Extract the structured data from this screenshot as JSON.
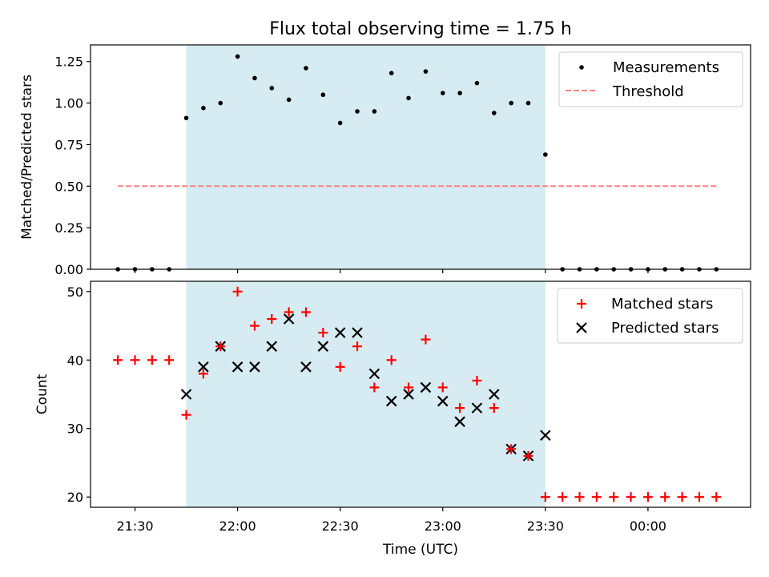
{
  "chart_data": [
    {
      "type": "scatter",
      "title": "Flux total observing time = 1.75 h",
      "xlabel": "",
      "ylabel": "Matched/Predicted stars",
      "ylim": [
        0,
        1.35
      ],
      "yticks": [
        "0.00",
        "0.25",
        "0.50",
        "0.75",
        "1.00",
        "1.25"
      ],
      "ytick_values": [
        0,
        0.25,
        0.5,
        0.75,
        1.0,
        1.25
      ],
      "xlim": [
        "21:17",
        "00:30"
      ],
      "highlight_span": [
        "21:45",
        "23:30"
      ],
      "highlight_color": "#add8e6",
      "legend_position": "top-right",
      "series": [
        {
          "name": "Measurements",
          "marker": "dot",
          "color": "#000000",
          "x": [
            "21:25",
            "21:30",
            "21:35",
            "21:40",
            "21:45",
            "21:50",
            "21:55",
            "22:00",
            "22:05",
            "22:10",
            "22:15",
            "22:20",
            "22:25",
            "22:30",
            "22:35",
            "22:40",
            "22:45",
            "22:50",
            "22:55",
            "23:00",
            "23:05",
            "23:10",
            "23:15",
            "23:20",
            "23:25",
            "23:30",
            "23:35",
            "23:40",
            "23:45",
            "23:50",
            "23:55",
            "00:00",
            "00:05",
            "00:10",
            "00:15",
            "00:20"
          ],
          "y": [
            0,
            0,
            0,
            0,
            0.91,
            0.97,
            1.0,
            1.28,
            1.15,
            1.09,
            1.02,
            1.21,
            1.05,
            0.88,
            0.95,
            0.95,
            1.18,
            1.03,
            1.19,
            1.06,
            1.06,
            1.12,
            0.94,
            1.0,
            1.0,
            0.69,
            0,
            0,
            0,
            0,
            0,
            0,
            0,
            0,
            0,
            0
          ]
        },
        {
          "name": "Threshold",
          "style": "dashed",
          "color": "#ff8080",
          "x": [
            "21:25",
            "00:20"
          ],
          "y": [
            0.5,
            0.5
          ]
        }
      ]
    },
    {
      "type": "scatter",
      "xlabel": "Time (UTC)",
      "ylabel": "Count",
      "ylim": [
        18.5,
        51.5
      ],
      "yticks": [
        "20",
        "30",
        "40",
        "50"
      ],
      "ytick_values": [
        20,
        30,
        40,
        50
      ],
      "xticks": [
        "21:30",
        "22:00",
        "22:30",
        "23:00",
        "23:30",
        "00:00"
      ],
      "xlim": [
        "21:17",
        "00:30"
      ],
      "highlight_span": [
        "21:45",
        "23:30"
      ],
      "highlight_color": "#add8e6",
      "legend_position": "top-right",
      "series": [
        {
          "name": "Matched stars",
          "marker": "plus",
          "color": "#ff0000",
          "x": [
            "21:25",
            "21:30",
            "21:35",
            "21:40",
            "21:45",
            "21:50",
            "21:55",
            "22:00",
            "22:05",
            "22:10",
            "22:15",
            "22:20",
            "22:25",
            "22:30",
            "22:35",
            "22:40",
            "22:45",
            "22:50",
            "22:55",
            "23:00",
            "23:05",
            "23:10",
            "23:15",
            "23:20",
            "23:25",
            "23:30",
            "23:35",
            "23:40",
            "23:45",
            "23:50",
            "23:55",
            "00:00",
            "00:05",
            "00:10",
            "00:15",
            "00:20"
          ],
          "y": [
            40,
            40,
            40,
            40,
            32,
            38,
            42,
            50,
            45,
            46,
            47,
            47,
            44,
            39,
            42,
            36,
            40,
            36,
            43,
            36,
            33,
            37,
            33,
            27,
            26,
            20,
            20,
            20,
            20,
            20,
            20,
            20,
            20,
            20,
            20,
            20
          ]
        },
        {
          "name": "Predicted stars",
          "marker": "x",
          "color": "#000000",
          "x": [
            "21:45",
            "21:50",
            "21:55",
            "22:00",
            "22:05",
            "22:10",
            "22:15",
            "22:20",
            "22:25",
            "22:30",
            "22:35",
            "22:40",
            "22:45",
            "22:50",
            "22:55",
            "23:00",
            "23:05",
            "23:10",
            "23:15",
            "23:20",
            "23:25",
            "23:30"
          ],
          "y": [
            35,
            39,
            42,
            39,
            39,
            42,
            46,
            39,
            42,
            44,
            44,
            38,
            34,
            35,
            36,
            34,
            31,
            33,
            35,
            27,
            26,
            29
          ]
        }
      ]
    }
  ]
}
